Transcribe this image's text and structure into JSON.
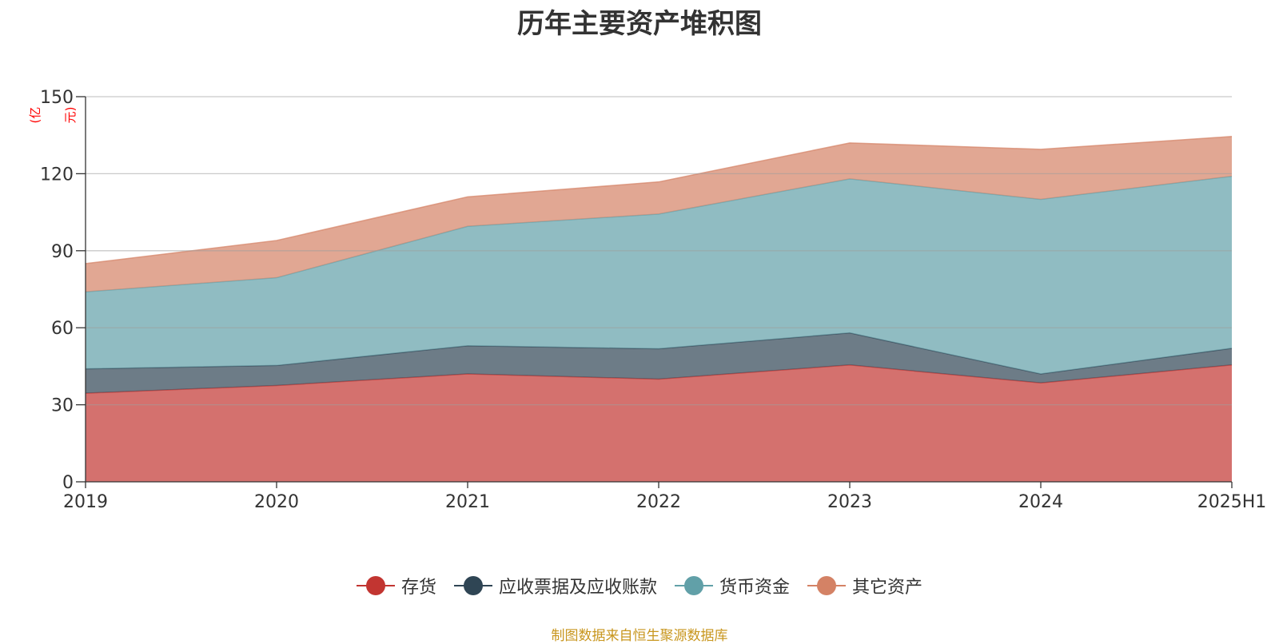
{
  "chart_data": {
    "type": "area",
    "stacked": true,
    "title": "历年主要资产堆积图",
    "unit_label": "(亿元)",
    "categories": [
      "2019",
      "2020",
      "2021",
      "2022",
      "2023",
      "2024",
      "2025H1"
    ],
    "ylim": [
      0,
      150
    ],
    "yticks": [
      0,
      30,
      60,
      90,
      120,
      150
    ],
    "grid": true,
    "legend_position": "bottom",
    "series": [
      {
        "name": "存货",
        "color": "#c23531",
        "values": [
          34.5,
          37.5,
          42,
          40,
          45.5,
          38.5,
          45.5
        ]
      },
      {
        "name": "应收票据及应收账款",
        "color": "#2f4554",
        "values": [
          9.5,
          7.8,
          11,
          11.8,
          12.5,
          3.5,
          6.5
        ]
      },
      {
        "name": "货币资金",
        "color": "#61a0a8",
        "values": [
          30,
          34.2,
          46.5,
          52.5,
          60,
          68,
          67
        ]
      },
      {
        "name": "其它资产",
        "color": "#d48265",
        "values": [
          11,
          14.5,
          11.5,
          12.5,
          14,
          19.5,
          15.5
        ]
      }
    ],
    "source": "制图数据来自恒生聚源数据库"
  }
}
